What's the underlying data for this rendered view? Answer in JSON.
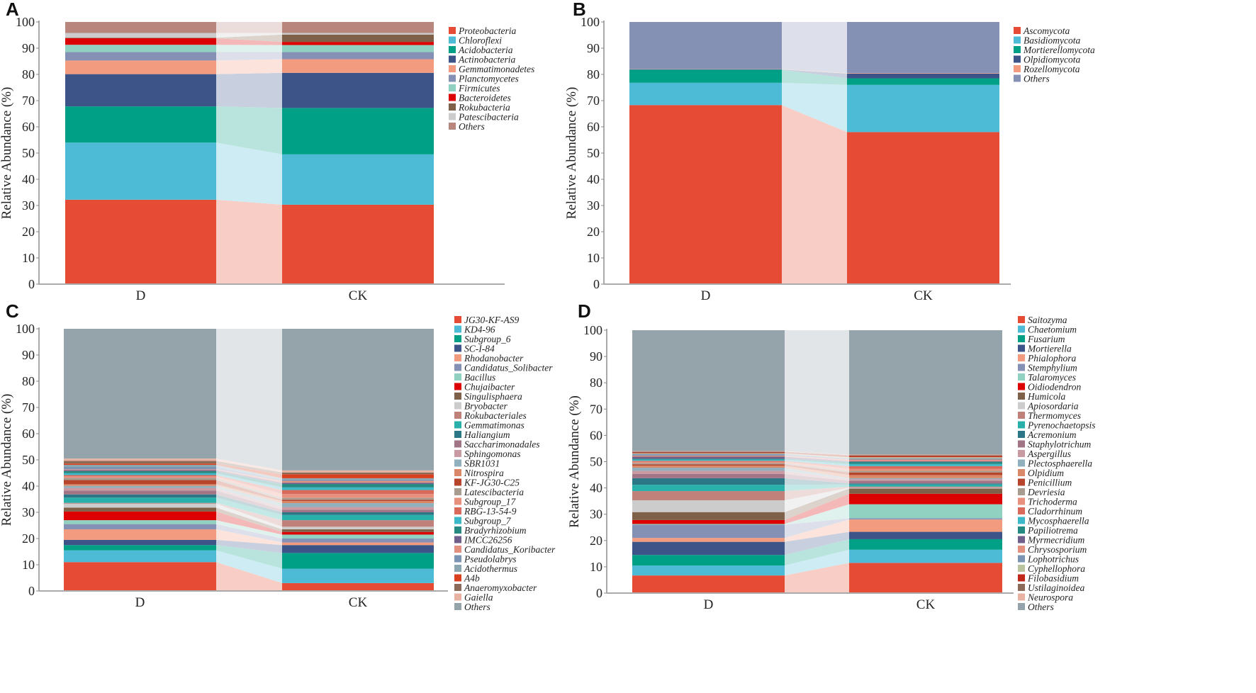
{
  "chart_data": [
    {
      "panel": "A",
      "type": "bar",
      "stacked": true,
      "categories": [
        "D",
        "CK"
      ],
      "ylabel": "Relative Abundance (%)",
      "ylim": [
        0,
        100
      ],
      "yticks": [
        "0",
        "10",
        "20",
        "30",
        "40",
        "50",
        "60",
        "70",
        "80",
        "90",
        "100"
      ],
      "legend_position": "right",
      "series": [
        {
          "name": "Proteobacteria",
          "color": "#E64B35",
          "values": [
            32.2,
            30.3
          ]
        },
        {
          "name": "Chloroflexi",
          "color": "#4DBBD5",
          "values": [
            21.8,
            19.2
          ]
        },
        {
          "name": "Acidobacteria",
          "color": "#00A087",
          "values": [
            13.8,
            17.7
          ]
        },
        {
          "name": "Actinobacteria",
          "color": "#3C5488",
          "values": [
            12.3,
            13.4
          ]
        },
        {
          "name": "Gemmatimonadetes",
          "color": "#F39B7F",
          "values": [
            5.2,
            5.2
          ]
        },
        {
          "name": "Planctomycetes",
          "color": "#8491B4",
          "values": [
            3.2,
            2.7
          ]
        },
        {
          "name": "Firmicutes",
          "color": "#91D1C2",
          "values": [
            2.8,
            2.7
          ]
        },
        {
          "name": "Bacteroidetes",
          "color": "#DC0000",
          "values": [
            2.5,
            1.2
          ]
        },
        {
          "name": "Rokubacteria",
          "color": "#7E6148",
          "values": [
            0.2,
            2.8
          ]
        },
        {
          "name": "Patescibacteria",
          "color": "#CCCCCC",
          "values": [
            1.8,
            0.6
          ]
        },
        {
          "name": "Others",
          "color": "#B8867D",
          "values": [
            4.2,
            4.2
          ]
        }
      ]
    },
    {
      "panel": "B",
      "type": "bar",
      "stacked": true,
      "categories": [
        "D",
        "CK"
      ],
      "ylabel": "Relative Abundance (%)",
      "ylim": [
        0,
        100
      ],
      "yticks": [
        "0",
        "10",
        "20",
        "30",
        "40",
        "50",
        "60",
        "70",
        "80",
        "90",
        "100"
      ],
      "legend_position": "right",
      "series": [
        {
          "name": "Ascomycota",
          "color": "#E64B35",
          "values": [
            68.3,
            58.0
          ]
        },
        {
          "name": "Basidiomycota",
          "color": "#4DBBD5",
          "values": [
            8.5,
            18.0
          ]
        },
        {
          "name": "Mortierellomycota",
          "color": "#00A087",
          "values": [
            5.0,
            2.5
          ]
        },
        {
          "name": "Olpidiomycota",
          "color": "#3C5488",
          "values": [
            0.1,
            1.8
          ]
        },
        {
          "name": "Rozellomycota",
          "color": "#F39B7F",
          "values": [
            0.1,
            0.2
          ]
        },
        {
          "name": "Others",
          "color": "#8491B4",
          "values": [
            18.0,
            19.5
          ]
        }
      ]
    },
    {
      "panel": "C",
      "type": "bar",
      "stacked": true,
      "categories": [
        "D",
        "CK"
      ],
      "ylabel": "Relative Abundance (%)",
      "ylim": [
        0,
        100
      ],
      "yticks": [
        "0",
        "10",
        "20",
        "30",
        "40",
        "50",
        "60",
        "70",
        "80",
        "90",
        "100"
      ],
      "legend_position": "right",
      "series": [
        {
          "name": "JG30-KF-AS9",
          "color": "#E64B35",
          "values": [
            11.0,
            3.0
          ]
        },
        {
          "name": "KD4-96",
          "color": "#4DBBD5",
          "values": [
            4.5,
            5.5
          ]
        },
        {
          "name": "Subgroup_6",
          "color": "#00A087",
          "values": [
            2.0,
            6.0
          ]
        },
        {
          "name": "SC-I-84",
          "color": "#3C5488",
          "values": [
            2.0,
            3.0
          ]
        },
        {
          "name": "Rhodanobacter",
          "color": "#F39B7F",
          "values": [
            4.0,
            1.0
          ]
        },
        {
          "name": "Candidatus_Solibacter",
          "color": "#8491B4",
          "values": [
            2.0,
            1.5
          ]
        },
        {
          "name": "Bacillus",
          "color": "#91D1C2",
          "values": [
            1.5,
            1.5
          ]
        },
        {
          "name": "Chujaibacter",
          "color": "#DC0000",
          "values": [
            3.3,
            1.0
          ]
        },
        {
          "name": "Singulisphaera",
          "color": "#7E6148",
          "values": [
            1.5,
            1.0
          ]
        },
        {
          "name": "Bryobacter",
          "color": "#CCCCCC",
          "values": [
            1.5,
            1.0
          ]
        },
        {
          "name": "Rokubacteriales",
          "color": "#C0817B",
          "values": [
            0.3,
            2.5
          ]
        },
        {
          "name": "Gemmatimonas",
          "color": "#2AB0AA",
          "values": [
            2.0,
            2.0
          ]
        },
        {
          "name": "Haliangium",
          "color": "#2C7787",
          "values": [
            1.2,
            1.0
          ]
        },
        {
          "name": "Saccharimonadales",
          "color": "#A17585",
          "values": [
            1.5,
            1.0
          ]
        },
        {
          "name": "Sphingomonas",
          "color": "#C99AA2",
          "values": [
            1.0,
            1.0
          ]
        },
        {
          "name": "SBR1031",
          "color": "#8FB0BC",
          "values": [
            0.8,
            1.5
          ]
        },
        {
          "name": "Nitrospira",
          "color": "#D9896A",
          "values": [
            0.6,
            0.8
          ]
        },
        {
          "name": "KF-JG30-C25",
          "color": "#B6452C",
          "values": [
            1.6,
            0.5
          ]
        },
        {
          "name": "Latescibacteria",
          "color": "#A89B90",
          "values": [
            0.8,
            0.7
          ]
        },
        {
          "name": "Subgroup_17",
          "color": "#E8907E",
          "values": [
            0.6,
            1.5
          ]
        },
        {
          "name": "RBG-13-54-9",
          "color": "#D96A5B",
          "values": [
            0.5,
            1.5
          ]
        },
        {
          "name": "Subgroup_7",
          "color": "#3DB8C8",
          "values": [
            0.7,
            1.0
          ]
        },
        {
          "name": "Bradyrhizobium",
          "color": "#268A82",
          "values": [
            0.8,
            1.3
          ]
        },
        {
          "name": "IMCC26256",
          "color": "#6F5F8A",
          "values": [
            0.4,
            0.5
          ]
        },
        {
          "name": "Candidatus_Koribacter",
          "color": "#E3917F",
          "values": [
            0.3,
            0.7
          ]
        },
        {
          "name": "Pseudolabrys",
          "color": "#7C94B4",
          "values": [
            0.9,
            0.5
          ]
        },
        {
          "name": "Acidothermus",
          "color": "#8AA6B0",
          "values": [
            0.8,
            0.5
          ]
        },
        {
          "name": "A4b",
          "color": "#D8401F",
          "values": [
            0.5,
            1.5
          ]
        },
        {
          "name": "Anaeromyxobacter",
          "color": "#8B6A5A",
          "values": [
            1.0,
            0.7
          ]
        },
        {
          "name": "Gaiella",
          "color": "#E8B2A3",
          "values": [
            0.9,
            0.8
          ]
        },
        {
          "name": "Others",
          "color": "#95A3AB",
          "values": [
            49.5,
            54.0
          ]
        }
      ]
    },
    {
      "panel": "D",
      "type": "bar",
      "stacked": true,
      "categories": [
        "D",
        "CK"
      ],
      "ylabel": "Relative Abundance (%)",
      "ylim": [
        0,
        100
      ],
      "yticks": [
        "0",
        "10",
        "20",
        "30",
        "40",
        "50",
        "60",
        "70",
        "80",
        "90",
        "100"
      ],
      "legend_position": "right",
      "series": [
        {
          "name": "Saitozyma",
          "color": "#E64B35",
          "values": [
            6.7,
            11.5
          ]
        },
        {
          "name": "Chaetomium",
          "color": "#4DBBD5",
          "values": [
            3.8,
            5.0
          ]
        },
        {
          "name": "Fusarium",
          "color": "#00A087",
          "values": [
            4.0,
            4.0
          ]
        },
        {
          "name": "Mortierella",
          "color": "#3C5488",
          "values": [
            5.0,
            2.8
          ]
        },
        {
          "name": "Phialophora",
          "color": "#F39B7F",
          "values": [
            1.5,
            4.7
          ]
        },
        {
          "name": "Stemphylium",
          "color": "#8491B4",
          "values": [
            5.0,
            0.5
          ]
        },
        {
          "name": "Talaromyces",
          "color": "#91D1C2",
          "values": [
            0.3,
            5.3
          ]
        },
        {
          "name": "Oidiodendron",
          "color": "#DC0000",
          "values": [
            1.5,
            4.0
          ]
        },
        {
          "name": "Humicola",
          "color": "#7E6148",
          "values": [
            3.0,
            2.0
          ]
        },
        {
          "name": "Apiosordaria",
          "color": "#CCCCCC",
          "values": [
            4.5,
            0.3
          ]
        },
        {
          "name": "Thermomyces",
          "color": "#C0817B",
          "values": [
            3.5,
            0.4
          ]
        },
        {
          "name": "Pyrenochaetopsis",
          "color": "#2AB0AA",
          "values": [
            2.4,
            0.8
          ]
        },
        {
          "name": "Acremonium",
          "color": "#2C7787",
          "values": [
            2.5,
            0.4
          ]
        },
        {
          "name": "Staphylotrichum",
          "color": "#A17585",
          "values": [
            1.6,
            1.0
          ]
        },
        {
          "name": "Aspergillus",
          "color": "#C99AA2",
          "values": [
            1.2,
            0.6
          ]
        },
        {
          "name": "Plectosphaerella",
          "color": "#8FB0BC",
          "values": [
            1.2,
            0.4
          ]
        },
        {
          "name": "Olpidium",
          "color": "#D9896A",
          "values": [
            0.8,
            1.2
          ]
        },
        {
          "name": "Penicillium",
          "color": "#B6452C",
          "values": [
            0.5,
            1.0
          ]
        },
        {
          "name": "Devriesia",
          "color": "#A89B90",
          "values": [
            0.5,
            0.6
          ]
        },
        {
          "name": "Trichoderma",
          "color": "#E8907E",
          "values": [
            0.5,
            0.8
          ]
        },
        {
          "name": "Cladorrhinum",
          "color": "#D96A5B",
          "values": [
            0.3,
            1.0
          ]
        },
        {
          "name": "Mycosphaerella",
          "color": "#3DB8C8",
          "values": [
            0.5,
            0.8
          ]
        },
        {
          "name": "Papiliotrema",
          "color": "#268A82",
          "values": [
            0.3,
            0.8
          ]
        },
        {
          "name": "Myrmecridium",
          "color": "#6F5F8A",
          "values": [
            0.8,
            0.3
          ]
        },
        {
          "name": "Chrysosporium",
          "color": "#E3917F",
          "values": [
            0.4,
            0.6
          ]
        },
        {
          "name": "Lophotrichus",
          "color": "#7C94B4",
          "values": [
            0.6,
            0.4
          ]
        },
        {
          "name": "Cyphellophora",
          "color": "#B9C49E",
          "values": [
            0.3,
            0.5
          ]
        },
        {
          "name": "Filobasidium",
          "color": "#C0281A",
          "values": [
            0.3,
            0.5
          ]
        },
        {
          "name": "Ustilaginoidea",
          "color": "#8B6A5A",
          "values": [
            0.3,
            0.3
          ]
        },
        {
          "name": "Neurospora",
          "color": "#E8B2A3",
          "values": [
            0.2,
            0.2
          ]
        },
        {
          "name": "Others",
          "color": "#95A3AB",
          "values": [
            46.0,
            47.3
          ]
        }
      ]
    }
  ]
}
